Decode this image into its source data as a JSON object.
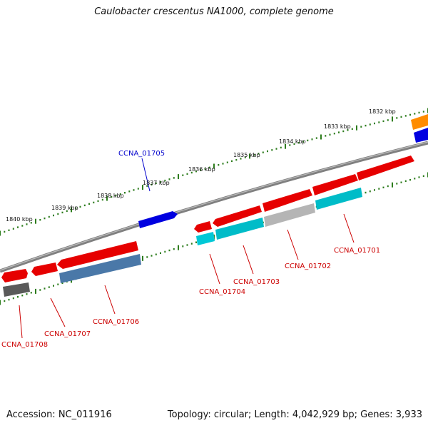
{
  "title": "Caulobacter crescentus NA1000, complete genome",
  "footer": {
    "accession_label": "Accession: NC_011916",
    "summary": "Topology: circular; Length: 4,042,929 bp; Genes: 3,933"
  },
  "colors": {
    "backbone": "#808080",
    "tick": "#2e7d1e",
    "gene_red": "#e60000",
    "gene_cyan": "#00bcc8",
    "gene_steel": "#4a78a8",
    "gene_gray": "#b5b5b5",
    "gene_dark": "#5a5a5a",
    "gene_blue": "#0000e0",
    "gene_orange": "#ff8c00",
    "label_red": "#cc0000",
    "label_blue": "#0000cc"
  },
  "scale_labels": [
    "1840 kbp",
    "1839 kbp",
    "1838 kbp",
    "1837 kbp",
    "1836 kbp",
    "1835 kbp",
    "1834 kbp",
    "1833 kbp",
    "1832 kbp"
  ],
  "gene_labels": [
    {
      "text": "CCNA_01705",
      "color": "label_blue"
    },
    {
      "text": "CCNA_01701",
      "color": "label_red"
    },
    {
      "text": "CCNA_01702",
      "color": "label_red"
    },
    {
      "text": "CCNA_01703",
      "color": "label_red"
    },
    {
      "text": "CCNA_01704",
      "color": "label_red"
    },
    {
      "text": "CCNA_01706",
      "color": "label_red"
    },
    {
      "text": "CCNA_01707",
      "color": "label_red"
    },
    {
      "text": "CCNA_01708",
      "color": "label_red"
    }
  ]
}
